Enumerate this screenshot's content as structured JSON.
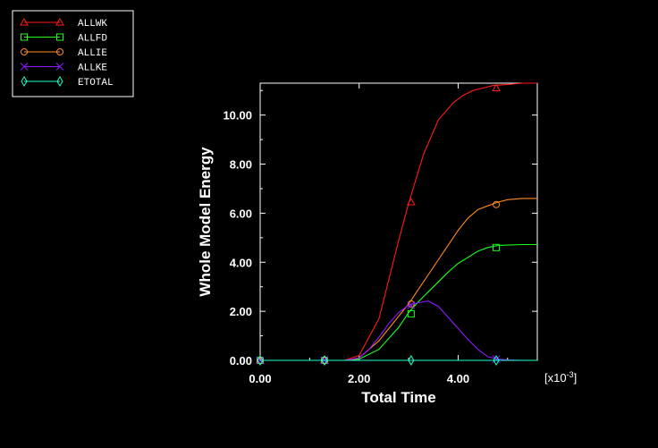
{
  "chart_data": {
    "type": "line",
    "xlabel": "Total Time",
    "ylabel": "Whole Model Energy",
    "x_multiplier": "[x10",
    "x_multiplier_exp": "-3",
    "x_multiplier_close": "]",
    "xlim": [
      0,
      0.0056
    ],
    "ylim": [
      0,
      11.3
    ],
    "x_ticks": [
      0,
      0.002,
      0.004
    ],
    "x_tick_labels": [
      "0.00",
      "2.00",
      "4.00"
    ],
    "y_ticks": [
      0,
      2,
      4,
      6,
      8,
      10
    ],
    "y_tick_labels": [
      "0.00",
      "2.00",
      "4.00",
      "6.00",
      "8.00",
      "10.00"
    ],
    "legend_position": "top-left",
    "background": "#000000",
    "axis_color": "#ffffff",
    "series": [
      {
        "name": "ALLWK",
        "color": "#ff1a1a",
        "marker": "triangle",
        "x": [
          0,
          0.0013,
          0.0017,
          0.002,
          0.0024,
          0.0028,
          0.003,
          0.0033,
          0.0036,
          0.0039,
          0.0041,
          0.0043,
          0.0045,
          0.0047,
          0.005,
          0.0053,
          0.0056
        ],
        "y": [
          0,
          0,
          0,
          0.2,
          1.7,
          4.9,
          6.4,
          8.4,
          9.8,
          10.5,
          10.8,
          11.0,
          11.1,
          11.2,
          11.25,
          11.3,
          11.3
        ],
        "markers_x": [
          0,
          0.0013,
          0.00305,
          0.00477
        ],
        "markers_y": [
          0,
          0,
          6.45,
          11.1
        ]
      },
      {
        "name": "ALLFD",
        "color": "#1aff1a",
        "marker": "square",
        "x": [
          0,
          0.0013,
          0.0018,
          0.002,
          0.0024,
          0.0028,
          0.003,
          0.0032,
          0.0034,
          0.0036,
          0.0038,
          0.004,
          0.0042,
          0.0044,
          0.0046,
          0.0048,
          0.005,
          0.0053,
          0.0056
        ],
        "y": [
          0,
          0,
          0,
          0.05,
          0.45,
          1.35,
          1.95,
          2.4,
          2.8,
          3.2,
          3.6,
          3.95,
          4.2,
          4.45,
          4.6,
          4.68,
          4.7,
          4.72,
          4.72
        ],
        "markers_x": [
          0,
          0.0013,
          0.00305,
          0.00477
        ],
        "markers_y": [
          0,
          0,
          1.9,
          4.6
        ]
      },
      {
        "name": "ALLIE",
        "color": "#ff8c1a",
        "marker": "circle",
        "x": [
          0,
          0.0013,
          0.0018,
          0.002,
          0.0024,
          0.0028,
          0.003,
          0.0032,
          0.0034,
          0.0036,
          0.0038,
          0.004,
          0.0042,
          0.0044,
          0.0046,
          0.0048,
          0.005,
          0.0053,
          0.0056
        ],
        "y": [
          0,
          0,
          0,
          0.1,
          0.8,
          1.8,
          2.3,
          2.9,
          3.5,
          4.1,
          4.7,
          5.3,
          5.8,
          6.15,
          6.3,
          6.45,
          6.55,
          6.6,
          6.6
        ],
        "markers_x": [
          0,
          0.0013,
          0.00305,
          0.00477
        ],
        "markers_y": [
          0,
          0,
          2.3,
          6.35
        ]
      },
      {
        "name": "ALLKE",
        "color": "#8c1aff",
        "marker": "x",
        "x": [
          0,
          0.0013,
          0.0017,
          0.002,
          0.0022,
          0.0024,
          0.0026,
          0.0028,
          0.003,
          0.0032,
          0.0034,
          0.0036,
          0.0038,
          0.004,
          0.0042,
          0.0044,
          0.0046,
          0.0048,
          0.005,
          0.0053,
          0.0056
        ],
        "y": [
          0,
          0,
          0,
          0.1,
          0.45,
          0.95,
          1.5,
          1.95,
          2.25,
          2.35,
          2.42,
          2.2,
          1.75,
          1.3,
          0.85,
          0.45,
          0.15,
          0.05,
          0.02,
          0,
          0
        ],
        "markers_x": [
          0,
          0.0013,
          0.00305,
          0.00477
        ],
        "markers_y": [
          0,
          0,
          2.25,
          0.05
        ]
      },
      {
        "name": "ETOTAL",
        "color": "#1affcc",
        "marker": "diamond",
        "x": [
          0,
          0.0056
        ],
        "y": [
          0,
          0
        ],
        "markers_x": [
          0,
          0.0013,
          0.00305,
          0.00477
        ],
        "markers_y": [
          0,
          0,
          0,
          0
        ]
      }
    ]
  }
}
